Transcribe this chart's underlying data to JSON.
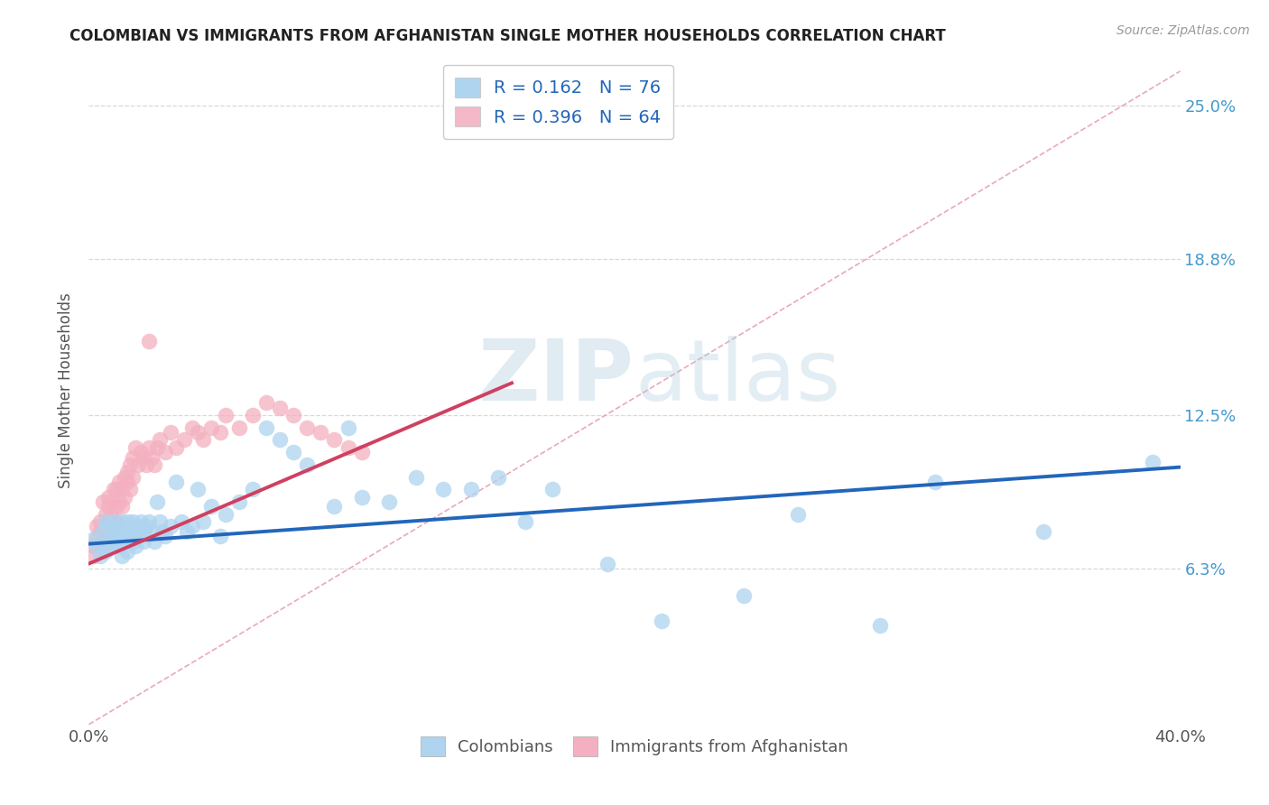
{
  "title": "COLOMBIAN VS IMMIGRANTS FROM AFGHANISTAN SINGLE MOTHER HOUSEHOLDS CORRELATION CHART",
  "source": "Source: ZipAtlas.com",
  "ylabel": "Single Mother Households",
  "ytick_labels": [
    "6.3%",
    "12.5%",
    "18.8%",
    "25.0%"
  ],
  "ytick_values": [
    0.063,
    0.125,
    0.188,
    0.25
  ],
  "xlim": [
    0.0,
    0.4
  ],
  "ylim": [
    0.0,
    0.27
  ],
  "legend_entries": [
    {
      "label": "R = 0.162   N = 76",
      "color": "#aed4f0"
    },
    {
      "label": "R = 0.396   N = 64",
      "color": "#f4b8c8"
    }
  ],
  "colombians": {
    "scatter_color": "#aed4f0",
    "line_color": "#2266bb",
    "trend_x": [
      0.0,
      0.4
    ],
    "trend_y": [
      0.073,
      0.104
    ]
  },
  "afghans": {
    "scatter_color": "#f4b0c0",
    "line_color": "#d04060",
    "trend_x": [
      0.0,
      0.155
    ],
    "trend_y": [
      0.065,
      0.138
    ]
  },
  "diagonal_line": {
    "x": [
      0.0,
      0.4
    ],
    "y": [
      0.0,
      0.264
    ],
    "color": "#e8a0b0",
    "style": "--"
  },
  "background_color": "#ffffff",
  "grid_color": "#d8d8d8",
  "title_color": "#222222",
  "watermark_zip": "ZIP",
  "watermark_atlas": "atlas",
  "colombians_points_x": [
    0.002,
    0.003,
    0.004,
    0.005,
    0.006,
    0.006,
    0.007,
    0.007,
    0.008,
    0.008,
    0.009,
    0.009,
    0.01,
    0.01,
    0.01,
    0.011,
    0.011,
    0.012,
    0.012,
    0.013,
    0.013,
    0.014,
    0.014,
    0.015,
    0.015,
    0.016,
    0.016,
    0.017,
    0.017,
    0.018,
    0.018,
    0.019,
    0.02,
    0.02,
    0.021,
    0.022,
    0.023,
    0.024,
    0.025,
    0.026,
    0.027,
    0.028,
    0.03,
    0.032,
    0.034,
    0.036,
    0.038,
    0.04,
    0.042,
    0.045,
    0.048,
    0.05,
    0.055,
    0.06,
    0.065,
    0.07,
    0.075,
    0.08,
    0.09,
    0.095,
    0.1,
    0.11,
    0.12,
    0.13,
    0.14,
    0.15,
    0.16,
    0.17,
    0.19,
    0.21,
    0.24,
    0.26,
    0.29,
    0.31,
    0.35,
    0.39
  ],
  "colombians_points_y": [
    0.075,
    0.072,
    0.068,
    0.078,
    0.07,
    0.082,
    0.074,
    0.08,
    0.076,
    0.072,
    0.078,
    0.082,
    0.074,
    0.076,
    0.08,
    0.072,
    0.078,
    0.082,
    0.068,
    0.075,
    0.078,
    0.082,
    0.07,
    0.076,
    0.08,
    0.074,
    0.082,
    0.078,
    0.072,
    0.08,
    0.076,
    0.082,
    0.078,
    0.074,
    0.08,
    0.082,
    0.078,
    0.074,
    0.09,
    0.082,
    0.078,
    0.076,
    0.08,
    0.098,
    0.082,
    0.078,
    0.08,
    0.095,
    0.082,
    0.088,
    0.076,
    0.085,
    0.09,
    0.095,
    0.12,
    0.115,
    0.11,
    0.105,
    0.088,
    0.12,
    0.092,
    0.09,
    0.1,
    0.095,
    0.095,
    0.1,
    0.082,
    0.095,
    0.065,
    0.042,
    0.052,
    0.085,
    0.04,
    0.098,
    0.078,
    0.106
  ],
  "afghans_points_x": [
    0.002,
    0.002,
    0.003,
    0.003,
    0.004,
    0.004,
    0.005,
    0.005,
    0.006,
    0.006,
    0.007,
    0.007,
    0.007,
    0.008,
    0.008,
    0.008,
    0.009,
    0.009,
    0.01,
    0.01,
    0.01,
    0.011,
    0.011,
    0.012,
    0.012,
    0.013,
    0.013,
    0.014,
    0.014,
    0.015,
    0.015,
    0.016,
    0.016,
    0.017,
    0.018,
    0.019,
    0.02,
    0.021,
    0.022,
    0.023,
    0.024,
    0.025,
    0.026,
    0.028,
    0.03,
    0.032,
    0.035,
    0.038,
    0.04,
    0.042,
    0.045,
    0.048,
    0.05,
    0.055,
    0.06,
    0.065,
    0.07,
    0.075,
    0.08,
    0.085,
    0.09,
    0.095,
    0.1,
    0.022
  ],
  "afghans_points_y": [
    0.072,
    0.068,
    0.075,
    0.08,
    0.078,
    0.082,
    0.072,
    0.09,
    0.085,
    0.078,
    0.082,
    0.088,
    0.092,
    0.078,
    0.085,
    0.09,
    0.082,
    0.095,
    0.088,
    0.082,
    0.095,
    0.09,
    0.098,
    0.088,
    0.095,
    0.1,
    0.092,
    0.098,
    0.102,
    0.095,
    0.105,
    0.1,
    0.108,
    0.112,
    0.105,
    0.11,
    0.108,
    0.105,
    0.112,
    0.108,
    0.105,
    0.112,
    0.115,
    0.11,
    0.118,
    0.112,
    0.115,
    0.12,
    0.118,
    0.115,
    0.12,
    0.118,
    0.125,
    0.12,
    0.125,
    0.13,
    0.128,
    0.125,
    0.12,
    0.118,
    0.115,
    0.112,
    0.11,
    0.155
  ]
}
